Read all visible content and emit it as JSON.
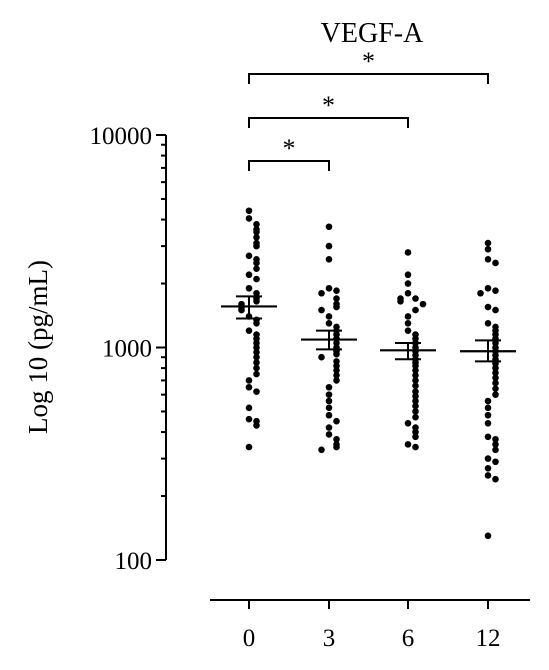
{
  "chart_data": {
    "type": "scatter",
    "title": "VEGF-A",
    "xlabel": "",
    "ylabel": "Log 10 (pg/mL)",
    "yscale": "log",
    "ylim": [
      100,
      10000
    ],
    "yticks": [
      "100",
      "1000",
      "10000"
    ],
    "ytick_values": [
      100,
      1000,
      10000
    ],
    "categories": [
      "0",
      "3",
      "6",
      "12"
    ],
    "groups": [
      {
        "label": "0",
        "mean": 1560,
        "sem_low": 1370,
        "sem_high": 1740,
        "points": [
          4400,
          4050,
          3800,
          3600,
          3500,
          3300,
          3100,
          3000,
          2700,
          2600,
          2500,
          2350,
          2200,
          2100,
          1900,
          1800,
          1700,
          1650,
          1600,
          1550,
          1500,
          1400,
          1350,
          1300,
          1200,
          1150,
          1100,
          1050,
          1000,
          950,
          900,
          850,
          800,
          750,
          700,
          650,
          620,
          520,
          460,
          450,
          430,
          340
        ]
      },
      {
        "label": "3",
        "mean": 1090,
        "sem_low": 980,
        "sem_high": 1200,
        "points": [
          3700,
          3000,
          2600,
          1900,
          1850,
          1800,
          1700,
          1600,
          1550,
          1500,
          1400,
          1300,
          1250,
          1200,
          1150,
          1100,
          1050,
          1000,
          960,
          930,
          900,
          860,
          820,
          780,
          740,
          700,
          650,
          600,
          560,
          520,
          480,
          450,
          420,
          390,
          370,
          350,
          340,
          330
        ]
      },
      {
        "label": "6",
        "mean": 970,
        "sem_low": 880,
        "sem_high": 1050,
        "points": [
          2800,
          2200,
          2000,
          1800,
          1700,
          1700,
          1650,
          1600,
          1500,
          1400,
          1300,
          1200,
          1150,
          1100,
          1050,
          1000,
          960,
          920,
          880,
          850,
          820,
          780,
          740,
          700,
          660,
          620,
          590,
          560,
          530,
          500,
          470,
          440,
          420,
          400,
          380,
          350,
          340
        ]
      },
      {
        "label": "12",
        "mean": 960,
        "sem_low": 860,
        "sem_high": 1080,
        "points": [
          3100,
          2900,
          2600,
          2500,
          1900,
          1850,
          1800,
          1550,
          1500,
          1300,
          1250,
          1200,
          1150,
          1100,
          1050,
          1000,
          960,
          920,
          880,
          840,
          800,
          760,
          720,
          680,
          640,
          600,
          560,
          520,
          480,
          440,
          380,
          370,
          350,
          330,
          300,
          290,
          270,
          250,
          240,
          130
        ]
      }
    ],
    "comparisons": [
      {
        "from": "0",
        "to": "3",
        "label": "*"
      },
      {
        "from": "0",
        "to": "6",
        "label": "*"
      },
      {
        "from": "0",
        "to": "12",
        "label": "*"
      }
    ],
    "grid": false,
    "legend": "none"
  }
}
